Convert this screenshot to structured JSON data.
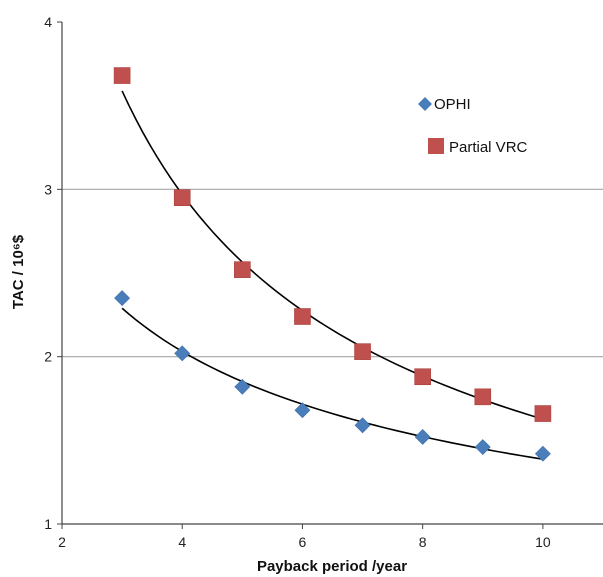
{
  "chart_data": {
    "type": "scatter",
    "x": [
      3,
      4,
      5,
      6,
      7,
      8,
      9,
      10
    ],
    "series": [
      {
        "name": "OPHI",
        "marker": "diamond",
        "color": "#4a7ebb",
        "values": [
          2.35,
          2.02,
          1.82,
          1.68,
          1.59,
          1.52,
          1.46,
          1.42
        ]
      },
      {
        "name": "Partial VRC",
        "marker": "square",
        "color": "#c0504d",
        "values": [
          3.68,
          2.95,
          2.52,
          2.24,
          2.03,
          1.88,
          1.76,
          1.66
        ]
      }
    ],
    "trendline_color": "#000000",
    "xlim": [
      2,
      11
    ],
    "ylim": [
      1,
      4
    ],
    "xticks": [
      "2",
      "4",
      "6",
      "8",
      "10"
    ],
    "yticks": [
      "1",
      "2",
      "3",
      "4"
    ],
    "xlabel": "Payback period /year",
    "ylabel": "TAC  / 10⁶$",
    "grid": "horizontal",
    "legend_position": "top-right"
  }
}
